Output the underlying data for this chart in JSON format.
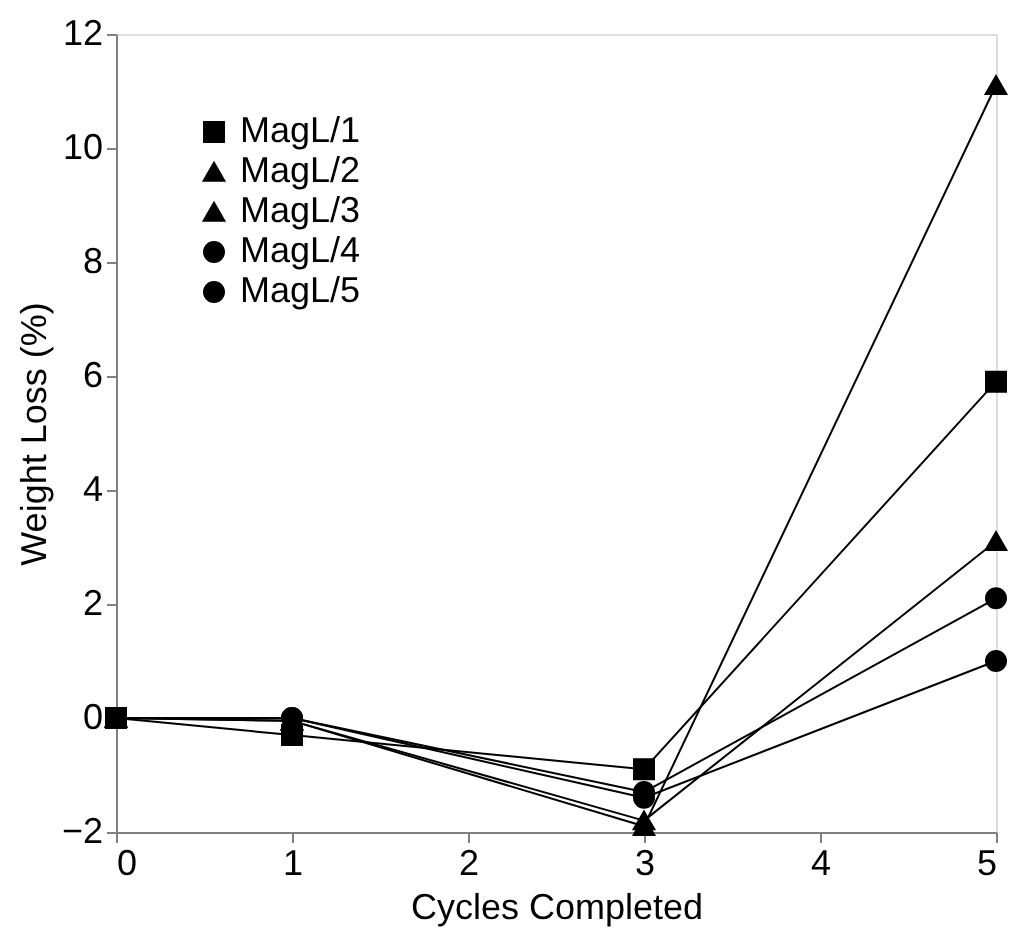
{
  "chart_data": {
    "type": "line",
    "xlabel": "Cycles Completed",
    "ylabel": "Weight Loss (%)",
    "x": [
      0,
      1,
      3,
      5
    ],
    "series": [
      {
        "name": "MagL/1",
        "color": "#000000",
        "marker": "square",
        "values": [
          0,
          -0.3,
          -0.9,
          5.9
        ]
      },
      {
        "name": "MagL/2",
        "color": "#000000",
        "marker": "triangle",
        "values": [
          0,
          -0.05,
          -1.9,
          11.1
        ]
      },
      {
        "name": "MagL/3",
        "color": "#000000",
        "marker": "triangle",
        "values": [
          0,
          -0.05,
          -1.8,
          3.1
        ]
      },
      {
        "name": "MagL/4",
        "color": "#000000",
        "marker": "circle",
        "values": [
          0,
          0,
          -1.4,
          1.0
        ]
      },
      {
        "name": "MagL/5",
        "color": "#000000",
        "marker": "circle",
        "values": [
          0,
          0,
          -1.3,
          2.1
        ]
      }
    ],
    "xlim": [
      0,
      5
    ],
    "xticks": [
      0,
      1,
      2,
      3,
      4,
      5
    ],
    "ylim": [
      -2,
      12
    ],
    "yticks": [
      -2,
      0,
      2,
      4,
      6,
      8,
      10,
      12
    ],
    "grid": false,
    "legend": "top left",
    "line_style": "solid"
  }
}
